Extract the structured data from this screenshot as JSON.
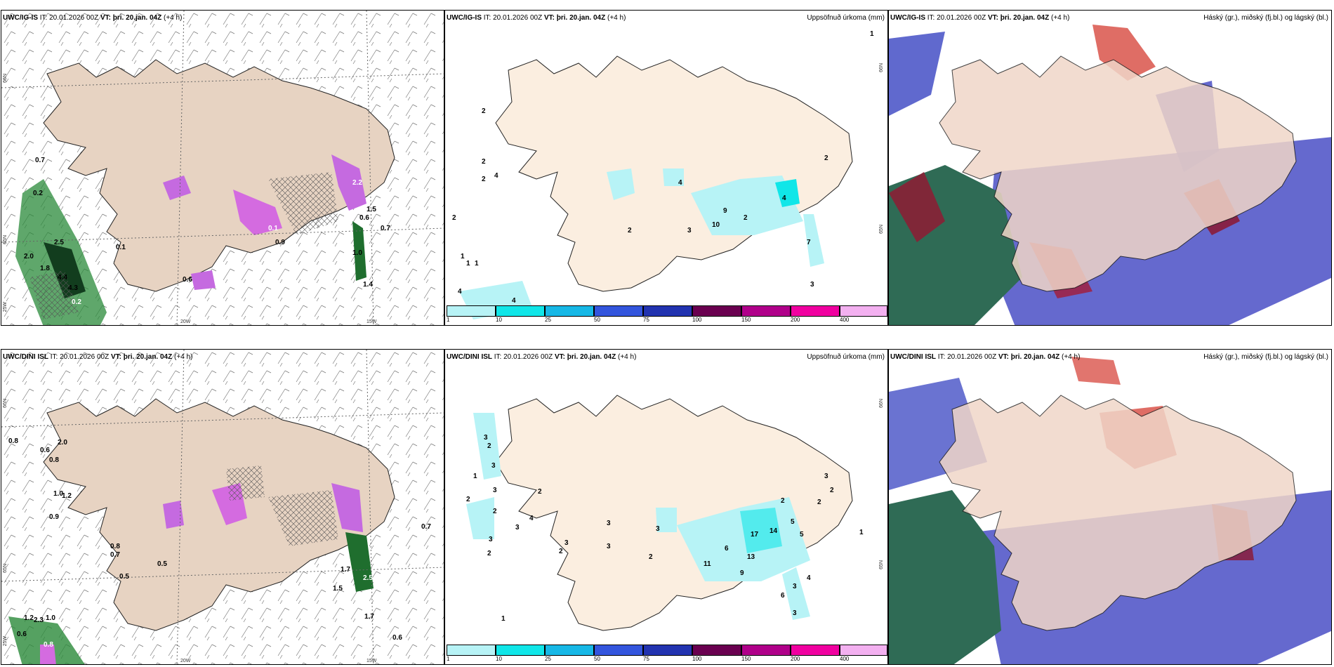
{
  "colors": {
    "land": "#f3d7c4",
    "land_panel1": "#e7d3c2",
    "outline": "#222222"
  },
  "panels": [
    {
      "model": "UWC/IG-IS",
      "it": "20.01.2026 00Z",
      "vt": "þri. 20.jan. 04Z",
      "lead": "(+4 h)",
      "title": "",
      "labels": [
        "0.7",
        "0.2",
        "2.5",
        "2.0",
        "1.8",
        "4.4",
        "4.3",
        "0.2",
        "0.1",
        "0.6",
        "2.2",
        "0.1",
        "0.9",
        "1.5",
        "0.6",
        "0.7",
        "1.0",
        "1.4"
      ],
      "axes": {
        "lon_left": "20W",
        "lon_right": "15W",
        "lat_top": "66N",
        "lat_mid": "65N",
        "lat_bot": "25W"
      }
    },
    {
      "model": "UWC/IG-IS",
      "it": "20.01.2026 00Z",
      "vt": "þri. 20.jan. 04Z",
      "lead": "(+4 h)",
      "title": "Uppsöfnuð úrkoma (mm)",
      "labels": [
        "1",
        "2",
        "2",
        "4",
        "2",
        "2",
        "1",
        "1",
        "4",
        "4",
        "2",
        "4",
        "3",
        "10",
        "9",
        "2",
        "4",
        "7",
        "3",
        "2",
        "1"
      ],
      "axes": {
        "lat_top": "66N",
        "lat_mid": "65N"
      }
    },
    {
      "model": "UWC/IG-IS",
      "it": "20.01.2026 00Z",
      "vt": "þri. 20.jan. 04Z",
      "lead": "(+4 h)",
      "title": "Háský (gr.), miðský (fj.bl.) og lágský (bl.)",
      "labels": []
    },
    {
      "model": "UWC/DINI ISL",
      "it": "20.01.2026 00Z",
      "vt": "þri. 20.jan. 04Z",
      "lead": "(+4 h)",
      "title": "",
      "labels": [
        "0.8",
        "2.0",
        "0.6",
        "0.8",
        "1.2",
        "0.9",
        "0.8",
        "0.7",
        "0.5",
        "0.5",
        "1.5",
        "1.7",
        "2.5",
        "1.7",
        "1.0",
        "0.7",
        "1.2",
        "2.3",
        "1.0",
        "0.6",
        "0.8",
        "0.6"
      ],
      "axes": {
        "lon_left": "20W",
        "lon_right": "15W",
        "lat_top": "66N",
        "lat_mid": "65N",
        "lat_bot": "25W"
      }
    },
    {
      "model": "UWC/DINI ISL",
      "it": "20.01.2026 00Z",
      "vt": "þri. 20.jan. 04Z",
      "lead": "(+4 h)",
      "title": "Uppsöfnuð úrkoma (mm)",
      "labels": [
        "3",
        "2",
        "1",
        "3",
        "2",
        "3",
        "2",
        "3",
        "2",
        "2",
        "3",
        "4",
        "3",
        "2",
        "3",
        "3",
        "3",
        "2",
        "11",
        "13",
        "6",
        "9",
        "17",
        "14",
        "5",
        "5",
        "2",
        "3",
        "2",
        "2",
        "1",
        "4",
        "6",
        "3",
        "3",
        "1"
      ],
      "axes": {
        "lat_top": "66N",
        "lat_mid": "65N"
      }
    },
    {
      "model": "UWC/DINI ISL",
      "it": "20.01.2026 00Z",
      "vt": "þri. 20.jan. 04Z",
      "lead": "(+4 h)",
      "title": "Háský (gr.), miðský (fj.bl.) og lágský (bl.)",
      "labels": []
    }
  ],
  "legend": {
    "colors": [
      "#b7f3f6",
      "#10e6e8",
      "#17b8e6",
      "#3355dd",
      "#2233b0",
      "#6a0050",
      "#b0008a",
      "#f000a0",
      "#f3b0f0"
    ],
    "ticks": [
      "1",
      "10",
      "25",
      "50",
      "75",
      "100",
      "150",
      "200",
      "400"
    ]
  }
}
